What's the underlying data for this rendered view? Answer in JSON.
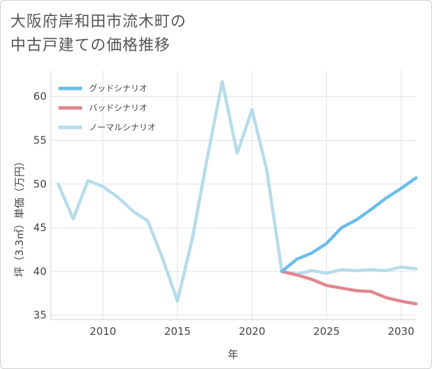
{
  "title_line1": "大阪府岸和田市流木町の",
  "title_line2": "中古戸建ての価格推移",
  "chart_data": {
    "type": "line",
    "xlabel": "年",
    "ylabel": "坪（3.3㎡）単価（万円）",
    "xlim": [
      2006.5,
      2031
    ],
    "ylim": [
      34.5,
      63
    ],
    "xticks": [
      2010,
      2015,
      2020,
      2025,
      2030
    ],
    "yticks": [
      35,
      40,
      45,
      50,
      55,
      60
    ],
    "legend_position": "top-left",
    "series": [
      {
        "name": "グッドシナリオ",
        "color": "#6bbcec",
        "width": 4.5,
        "x": [
          2022,
          2023,
          2024,
          2025,
          2026,
          2027,
          2028,
          2029,
          2030,
          2031
        ],
        "values": [
          40.0,
          41.4,
          42.1,
          43.2,
          45.0,
          45.9,
          47.1,
          48.4,
          49.5,
          50.7
        ]
      },
      {
        "name": "バッドシナリオ",
        "color": "#e0868f",
        "width": 4.5,
        "x": [
          2022,
          2023,
          2024,
          2025,
          2026,
          2027,
          2028,
          2029,
          2030,
          2031
        ],
        "values": [
          40.0,
          39.6,
          39.1,
          38.4,
          38.1,
          37.8,
          37.7,
          37.0,
          36.6,
          36.3
        ]
      },
      {
        "name": "ノーマルシナリオ",
        "color": "#b5dcea",
        "width": 4.5,
        "x": [
          2007,
          2008,
          2009,
          2010,
          2011,
          2012,
          2013,
          2014,
          2015,
          2016,
          2017,
          2018,
          2019,
          2020,
          2021,
          2022,
          2023,
          2024,
          2025,
          2026,
          2027,
          2028,
          2029,
          2030,
          2031
        ],
        "values": [
          50.0,
          46.0,
          50.4,
          49.7,
          48.5,
          46.9,
          45.8,
          41.5,
          36.6,
          43.8,
          53.0,
          61.7,
          53.5,
          58.5,
          51.5,
          40.0,
          39.7,
          40.1,
          39.8,
          40.2,
          40.1,
          40.2,
          40.1,
          40.5,
          40.3
        ]
      }
    ]
  }
}
